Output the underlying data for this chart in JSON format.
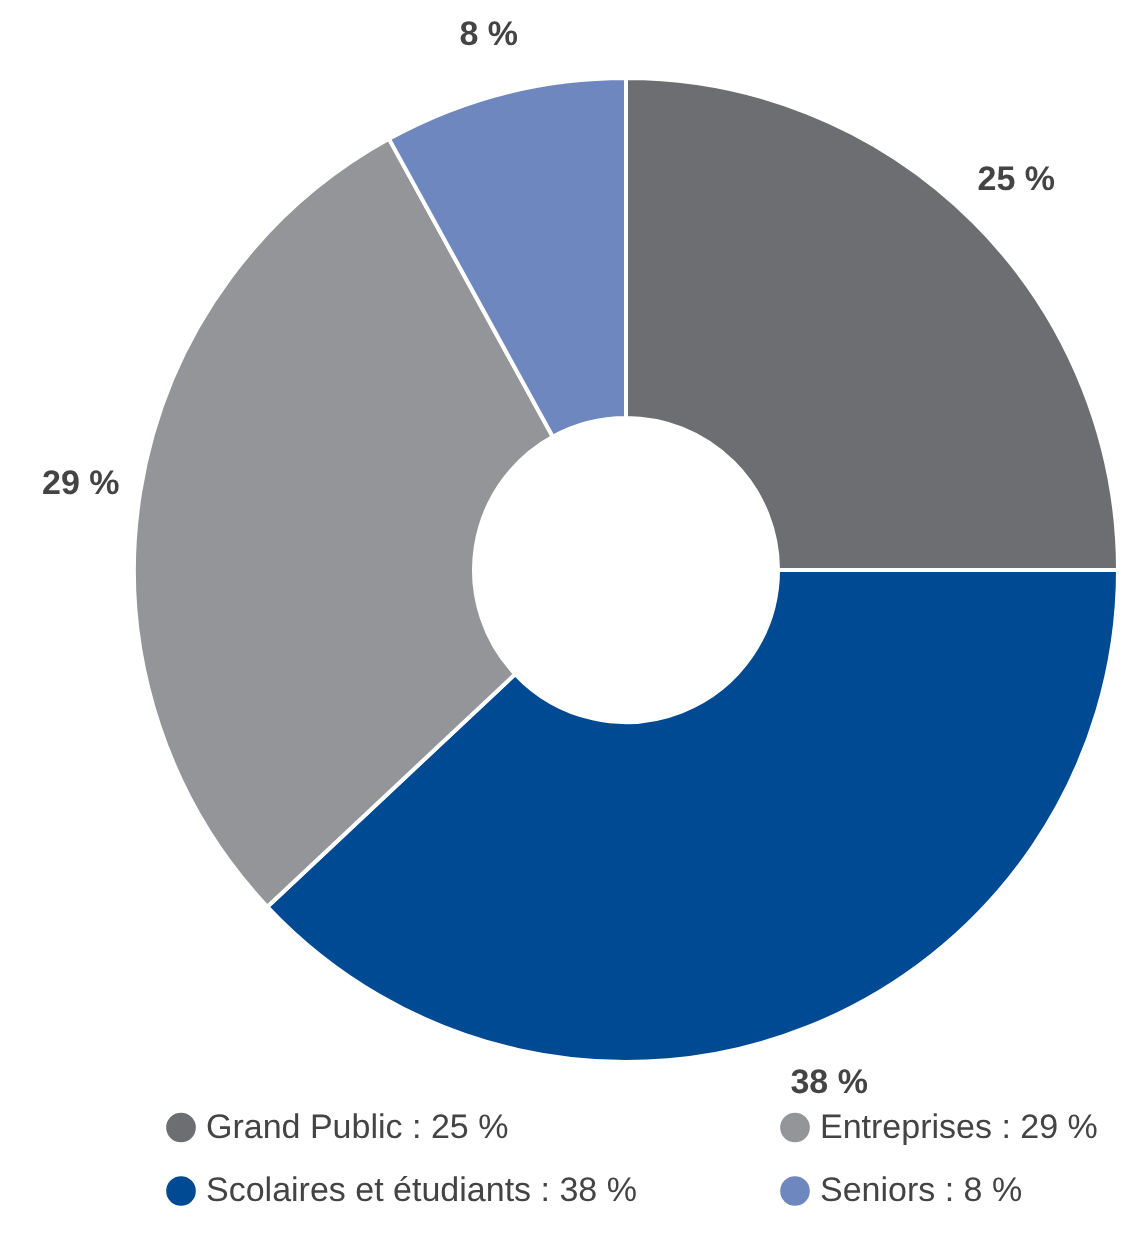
{
  "chart_data": {
    "type": "donut",
    "categories": [
      "Grand Public",
      "Scolaires et étudiants",
      "Entreprises",
      "Seniors"
    ],
    "values": [
      25,
      38,
      29,
      8
    ],
    "colors": [
      "#6d6e71",
      "#004a93",
      "#939598",
      "#6e87bf"
    ],
    "value_labels": [
      "25 %",
      "38 %",
      "29 %",
      "8 %"
    ],
    "legend": "bottom"
  }
}
